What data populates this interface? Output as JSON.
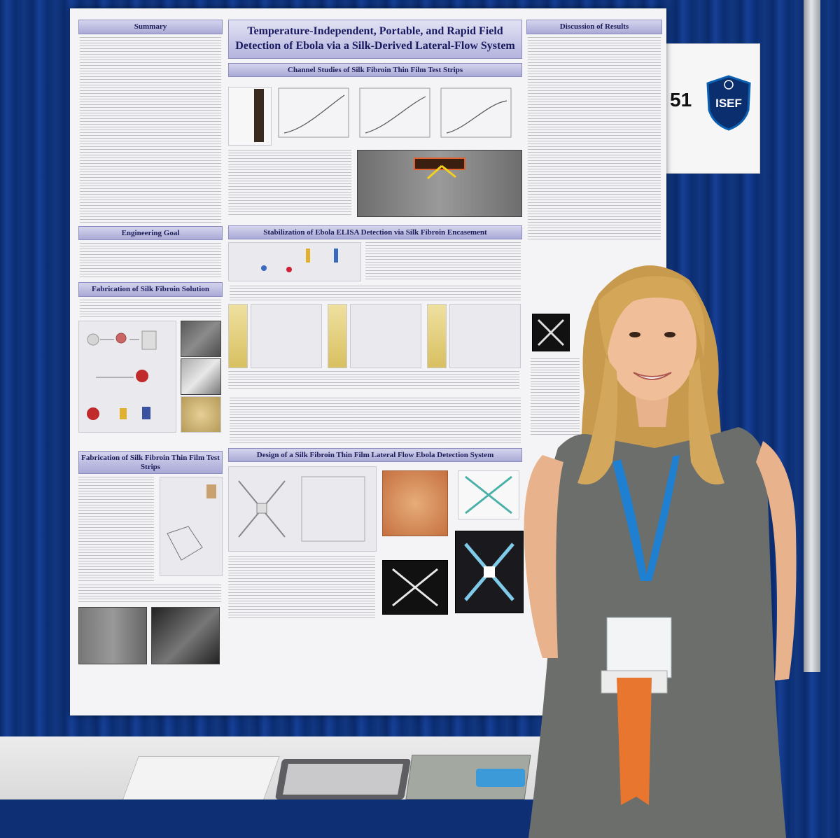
{
  "poster": {
    "title": "Temperature-Independent, Portable, and Rapid Field Detection of Ebola via a Silk-Derived Lateral-Flow System",
    "left_column": [
      "Summary",
      "Engineering Goal",
      "Fabrication of Silk Fibroin Solution",
      "Fabrication of Silk Fibroin Thin Film Test Strips"
    ],
    "middle_column": [
      "Channel Studies of Silk Fibroin Thin Film Test Strips",
      "Stabilization of Ebola ELISA Detection via Silk Fibroin Encasement",
      "Design of a Silk Fibroin Thin Film Lateral Flow Ebola Detection System"
    ],
    "right_column": [
      "Discussion of Results"
    ]
  },
  "booth_sign": {
    "number": "51",
    "badge_text": "ISEF"
  },
  "colors": {
    "curtain": "#0c2c6e",
    "poster_header": "#a9a9d6",
    "lanyard": "#1f7fd0",
    "ribbon": "#e8762e",
    "dress": "#6b6e6a"
  }
}
